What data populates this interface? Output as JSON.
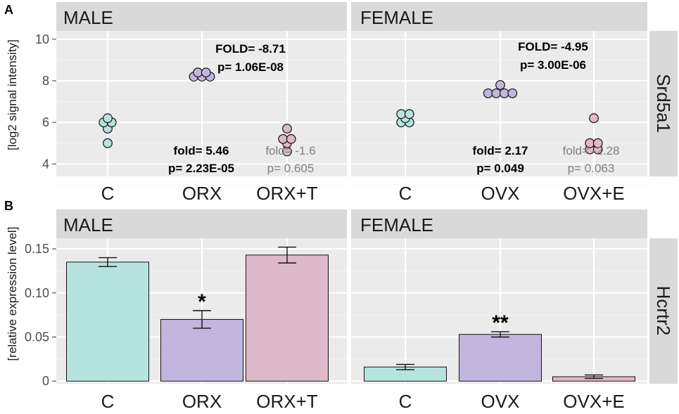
{
  "colors": {
    "control": "#b7e3de",
    "gonadectomy": "#c2b6df",
    "replacement": "#deb9c9",
    "panel_bg": "#ebebeb",
    "strip_bg": "#d9d9d9",
    "annotation_bold": "#000000",
    "annotation_gray": "#808080"
  },
  "chart_data": [
    {
      "type": "scatter",
      "panel_label": "A",
      "ylabel": "[log2 signal intensity]",
      "gene": "Srd5a1",
      "ylim": [
        3.4,
        10.4
      ],
      "yticks": [
        "4",
        "6",
        "8",
        "10"
      ],
      "facets": [
        {
          "title": "MALE",
          "categories": [
            "C",
            "ORX",
            "ORX+T"
          ],
          "points": [
            [
              5.0,
              5.7,
              6.0,
              6.0,
              6.2
            ],
            [
              8.2,
              8.2,
              8.2,
              8.4,
              8.4
            ],
            [
              4.6,
              5.0,
              5.2,
              5.2,
              5.7
            ]
          ],
          "annotations": [
            {
              "line1": "FOLD= -8.71",
              "line2": "p= 1.06E-08",
              "style": "bold"
            },
            {
              "line1": "fold= 5.46",
              "line2": "p= 2.23E-05",
              "style": "bold"
            },
            {
              "line1": "fold= -1.6",
              "line2": "p= 0.605",
              "style": "gray"
            }
          ]
        },
        {
          "title": "FEMALE",
          "categories": [
            "C",
            "OVX",
            "OVX+E"
          ],
          "points": [
            [
              6.0,
              6.0,
              6.2,
              6.4,
              6.4
            ],
            [
              7.4,
              7.4,
              7.4,
              7.4,
              7.8
            ],
            [
              4.7,
              4.7,
              5.0,
              5.0,
              6.2
            ]
          ],
          "annotations": [
            {
              "line1": "FOLD= -4.95",
              "line2": "p= 3.00E-06",
              "style": "bold"
            },
            {
              "line1": "fold= 2.17",
              "line2": "p= 0.049",
              "style": "bold"
            },
            {
              "line1": "fold= -2.28",
              "line2": "p= 0.063",
              "style": "gray"
            }
          ]
        }
      ]
    },
    {
      "type": "bar",
      "panel_label": "B",
      "ylabel": "[relative expression level]",
      "gene": "Hcrtr2",
      "ylim": [
        -0.003,
        0.162
      ],
      "yticks": [
        "0",
        "0.05",
        "0.10",
        "0.15"
      ],
      "facets": [
        {
          "title": "MALE",
          "categories": [
            "C",
            "ORX",
            "ORX+T"
          ],
          "values": [
            0.135,
            0.07,
            0.143
          ],
          "errors": [
            0.005,
            0.01,
            0.009
          ],
          "significance": [
            "",
            "*",
            ""
          ]
        },
        {
          "title": "FEMALE",
          "categories": [
            "C",
            "OVX",
            "OVX+E"
          ],
          "values": [
            0.016,
            0.053,
            0.005
          ],
          "errors": [
            0.003,
            0.003,
            0.002
          ],
          "significance": [
            "",
            "**",
            ""
          ]
        }
      ]
    }
  ]
}
